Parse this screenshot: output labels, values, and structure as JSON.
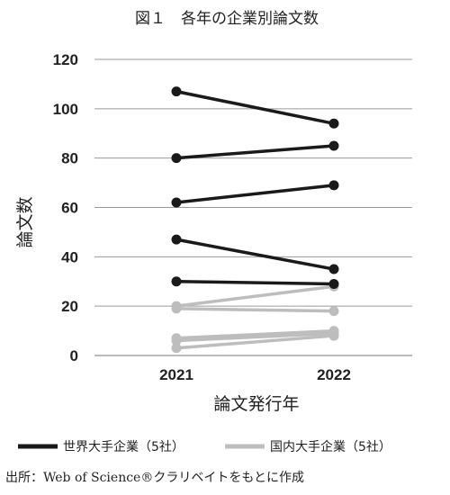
{
  "chart_data": {
    "type": "line",
    "title": "図１　各年の企業別論文数",
    "xlabel": "論文発行年",
    "ylabel": "論文数",
    "categories": [
      "2021",
      "2022"
    ],
    "ylim": [
      0,
      120
    ],
    "yticks": [
      0,
      20,
      40,
      60,
      80,
      100,
      120
    ],
    "grid": true,
    "legend_position": "bottom",
    "groups": [
      {
        "name": "世界大手企業（5社）",
        "color": "#1a1a1a"
      },
      {
        "name": "国内大手企業（5社）",
        "color": "#bdbdbd"
      }
    ],
    "series": [
      {
        "group": 0,
        "values": [
          107,
          94
        ]
      },
      {
        "group": 0,
        "values": [
          80,
          85
        ]
      },
      {
        "group": 0,
        "values": [
          62,
          69
        ]
      },
      {
        "group": 0,
        "values": [
          47,
          35
        ]
      },
      {
        "group": 0,
        "values": [
          30,
          29
        ]
      },
      {
        "group": 1,
        "values": [
          20,
          28
        ]
      },
      {
        "group": 1,
        "values": [
          19,
          18
        ]
      },
      {
        "group": 1,
        "values": [
          7,
          10
        ]
      },
      {
        "group": 1,
        "values": [
          6,
          9
        ]
      },
      {
        "group": 1,
        "values": [
          3,
          8
        ]
      }
    ]
  },
  "source": "出所：Web of Science®クラリベイトをもとに作成"
}
